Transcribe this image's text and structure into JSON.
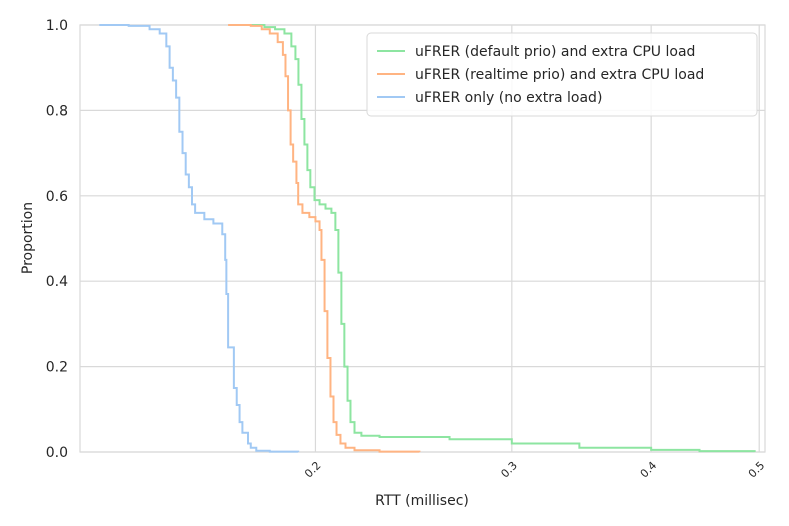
{
  "chart_data": {
    "type": "step",
    "xlabel": "RTT (millisec)",
    "ylabel": "Proportion",
    "xscale": "log",
    "xlim": [
      0.123,
      0.506
    ],
    "xticks": [
      0.2,
      0.3,
      0.4,
      0.5
    ],
    "ylim": [
      0,
      1
    ],
    "yticks": [
      {
        "value": 0,
        "label": "0.0"
      },
      {
        "value": 0.2,
        "label": "0.2"
      },
      {
        "value": 0.4,
        "label": "0.4"
      },
      {
        "value": 0.6,
        "label": "0.6"
      },
      {
        "value": 0.8,
        "label": "0.8"
      },
      {
        "value": 1,
        "label": "1.0"
      }
    ],
    "grid": true,
    "legend": "upper right",
    "series": [
      {
        "name": "uFRER (default prio) and extra CPU load",
        "color": "#8de5a1",
        "x": [
          0.171,
          0.18,
          0.184,
          0.1876,
          0.1903,
          0.1919,
          0.1931,
          0.1943,
          0.1955,
          0.1967,
          0.1979,
          0.1996,
          0.2017,
          0.2042,
          0.2067,
          0.2084,
          0.2097,
          0.211,
          0.2123,
          0.2137,
          0.215,
          0.2168,
          0.2199,
          0.2283,
          0.2638,
          0.3,
          0.3449,
          0.4,
          0.442,
          0.4953
        ],
        "values": [
          1.0,
          0.995,
          0.99,
          0.98,
          0.95,
          0.92,
          0.86,
          0.78,
          0.72,
          0.66,
          0.62,
          0.59,
          0.58,
          0.57,
          0.56,
          0.52,
          0.42,
          0.3,
          0.2,
          0.12,
          0.07,
          0.045,
          0.038,
          0.035,
          0.03,
          0.02,
          0.01,
          0.005,
          0.002,
          0
        ]
      },
      {
        "name": "uFRER (realtime prio) and extra CPU load",
        "color": "#ffb482",
        "x": [
          0.167,
          0.175,
          0.179,
          0.182,
          0.185,
          0.187,
          0.188,
          0.189,
          0.19,
          0.191,
          0.1923,
          0.193,
          0.1947,
          0.1975,
          0.2,
          0.2017,
          0.2025,
          0.2038,
          0.205,
          0.2063,
          0.2076,
          0.2089,
          0.2106,
          0.2128,
          0.2168,
          0.2283,
          0.2479
        ],
        "values": [
          1.0,
          0.998,
          0.99,
          0.98,
          0.96,
          0.93,
          0.88,
          0.8,
          0.72,
          0.68,
          0.63,
          0.58,
          0.56,
          0.55,
          0.54,
          0.52,
          0.45,
          0.33,
          0.22,
          0.13,
          0.07,
          0.04,
          0.02,
          0.01,
          0.004,
          0.001,
          0
        ]
      },
      {
        "name": "uFRER only (no extra load)",
        "color": "#a1c9f4",
        "x": [
          0.128,
          0.136,
          0.142,
          0.145,
          0.147,
          0.148,
          0.149,
          0.15,
          0.151,
          0.152,
          0.153,
          0.154,
          0.155,
          0.156,
          0.159,
          0.162,
          0.165,
          0.166,
          0.1664,
          0.167,
          0.169,
          0.17,
          0.171,
          0.172,
          0.174,
          0.175,
          0.177,
          0.182,
          0.193
        ],
        "values": [
          1.0,
          0.998,
          0.99,
          0.98,
          0.95,
          0.9,
          0.87,
          0.83,
          0.75,
          0.7,
          0.65,
          0.62,
          0.58,
          0.56,
          0.545,
          0.535,
          0.51,
          0.45,
          0.37,
          0.245,
          0.15,
          0.11,
          0.07,
          0.045,
          0.02,
          0.01,
          0.003,
          0.001,
          0
        ]
      }
    ]
  }
}
